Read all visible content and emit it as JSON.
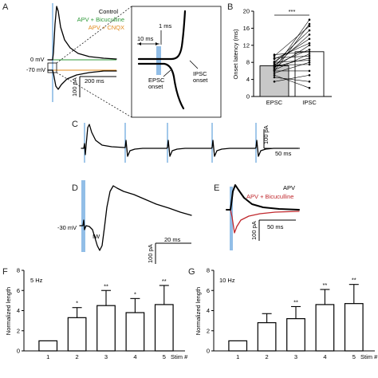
{
  "panels": {
    "A": {
      "letter": "A",
      "legend": [
        {
          "text": "Control",
          "color": "#000000"
        },
        {
          "text": "APV + Bicuculline",
          "color": "#2f9a3a"
        },
        {
          "text": "APV + CNQX",
          "color": "#e38b1e"
        }
      ],
      "holding": [
        "0 mV",
        "-70 mV"
      ],
      "scale_current": "100 pA",
      "scale_time": "200 ms",
      "inset": {
        "time_1": "1 ms",
        "time_10": "10 ms",
        "epsc_onset": "EPSC\nonset",
        "ipsc_onset": "IPSC\nonset"
      }
    },
    "B": {
      "letter": "B",
      "ylabel": "Onset latency (ms)",
      "significance": "***",
      "categories": [
        "EPSC",
        "IPSC"
      ]
    },
    "C": {
      "letter": "C",
      "scale_current": "100 pA",
      "scale_time": "50 ms"
    },
    "D": {
      "letter": "D",
      "holding": "-30 mV",
      "marker": "IW",
      "scale_current": "100 pA",
      "scale_time": "20 ms"
    },
    "E": {
      "letter": "E",
      "legend": [
        {
          "text": "APV",
          "color": "#000000"
        },
        {
          "text": "APV + Bicuculline",
          "color": "#c0282d"
        }
      ],
      "scale_current": "100 pA",
      "scale_time": "50 ms"
    },
    "F": {
      "letter": "F"
    },
    "G": {
      "letter": "G"
    }
  },
  "chart_data": [
    {
      "panel": "B",
      "type": "bar",
      "categories": [
        "EPSC",
        "IPSC"
      ],
      "values": [
        7.2,
        10.5
      ],
      "ylabel": "Onset latency (ms)",
      "ylim": [
        0,
        20
      ],
      "yticks": [
        0,
        4,
        8,
        12,
        16,
        20
      ],
      "bar_colors": [
        "#c8c8c8",
        "#ffffff"
      ],
      "significance": "***",
      "paired_points": [
        [
          6.0,
          17.0
        ],
        [
          6.5,
          18.0
        ],
        [
          7.8,
          15.5
        ],
        [
          7.2,
          14.5
        ],
        [
          8.2,
          13.5
        ],
        [
          6.8,
          12.0
        ],
        [
          9.5,
          16.5
        ],
        [
          7.5,
          11.0
        ],
        [
          6.2,
          10.0
        ],
        [
          8.8,
          12.5
        ],
        [
          7.0,
          9.0
        ],
        [
          9.0,
          9.5
        ],
        [
          5.5,
          8.0
        ],
        [
          7.4,
          7.5
        ],
        [
          9.8,
          10.5
        ],
        [
          6.0,
          6.0
        ],
        [
          3.5,
          5.0
        ],
        [
          4.5,
          3.5
        ],
        [
          5.0,
          2.0
        ],
        [
          8.0,
          8.5
        ]
      ]
    },
    {
      "panel": "F",
      "type": "bar",
      "title": "5 Hz",
      "categories": [
        "1",
        "2",
        "3",
        "4",
        "5"
      ],
      "values": [
        1.0,
        3.3,
        4.5,
        3.8,
        4.6
      ],
      "errors": [
        0.0,
        1.0,
        1.5,
        1.4,
        1.9
      ],
      "significance": [
        "",
        "*",
        "**",
        "*",
        "**"
      ],
      "ylabel": "Normalized length",
      "xlabel": "Stim #",
      "ylim": [
        0,
        8
      ],
      "yticks": [
        0,
        2,
        4,
        6,
        8
      ]
    },
    {
      "panel": "G",
      "type": "bar",
      "title": "10 Hz",
      "categories": [
        "1",
        "2",
        "3",
        "4",
        "5"
      ],
      "values": [
        1.0,
        2.8,
        3.2,
        4.6,
        4.7
      ],
      "errors": [
        0.0,
        0.9,
        1.2,
        1.5,
        1.9
      ],
      "significance": [
        "",
        "",
        "**",
        "**",
        "**"
      ],
      "ylabel": "Normalized length",
      "xlabel": "Stim #",
      "ylim": [
        0,
        8
      ],
      "yticks": [
        0,
        2,
        4,
        6,
        8
      ]
    }
  ]
}
